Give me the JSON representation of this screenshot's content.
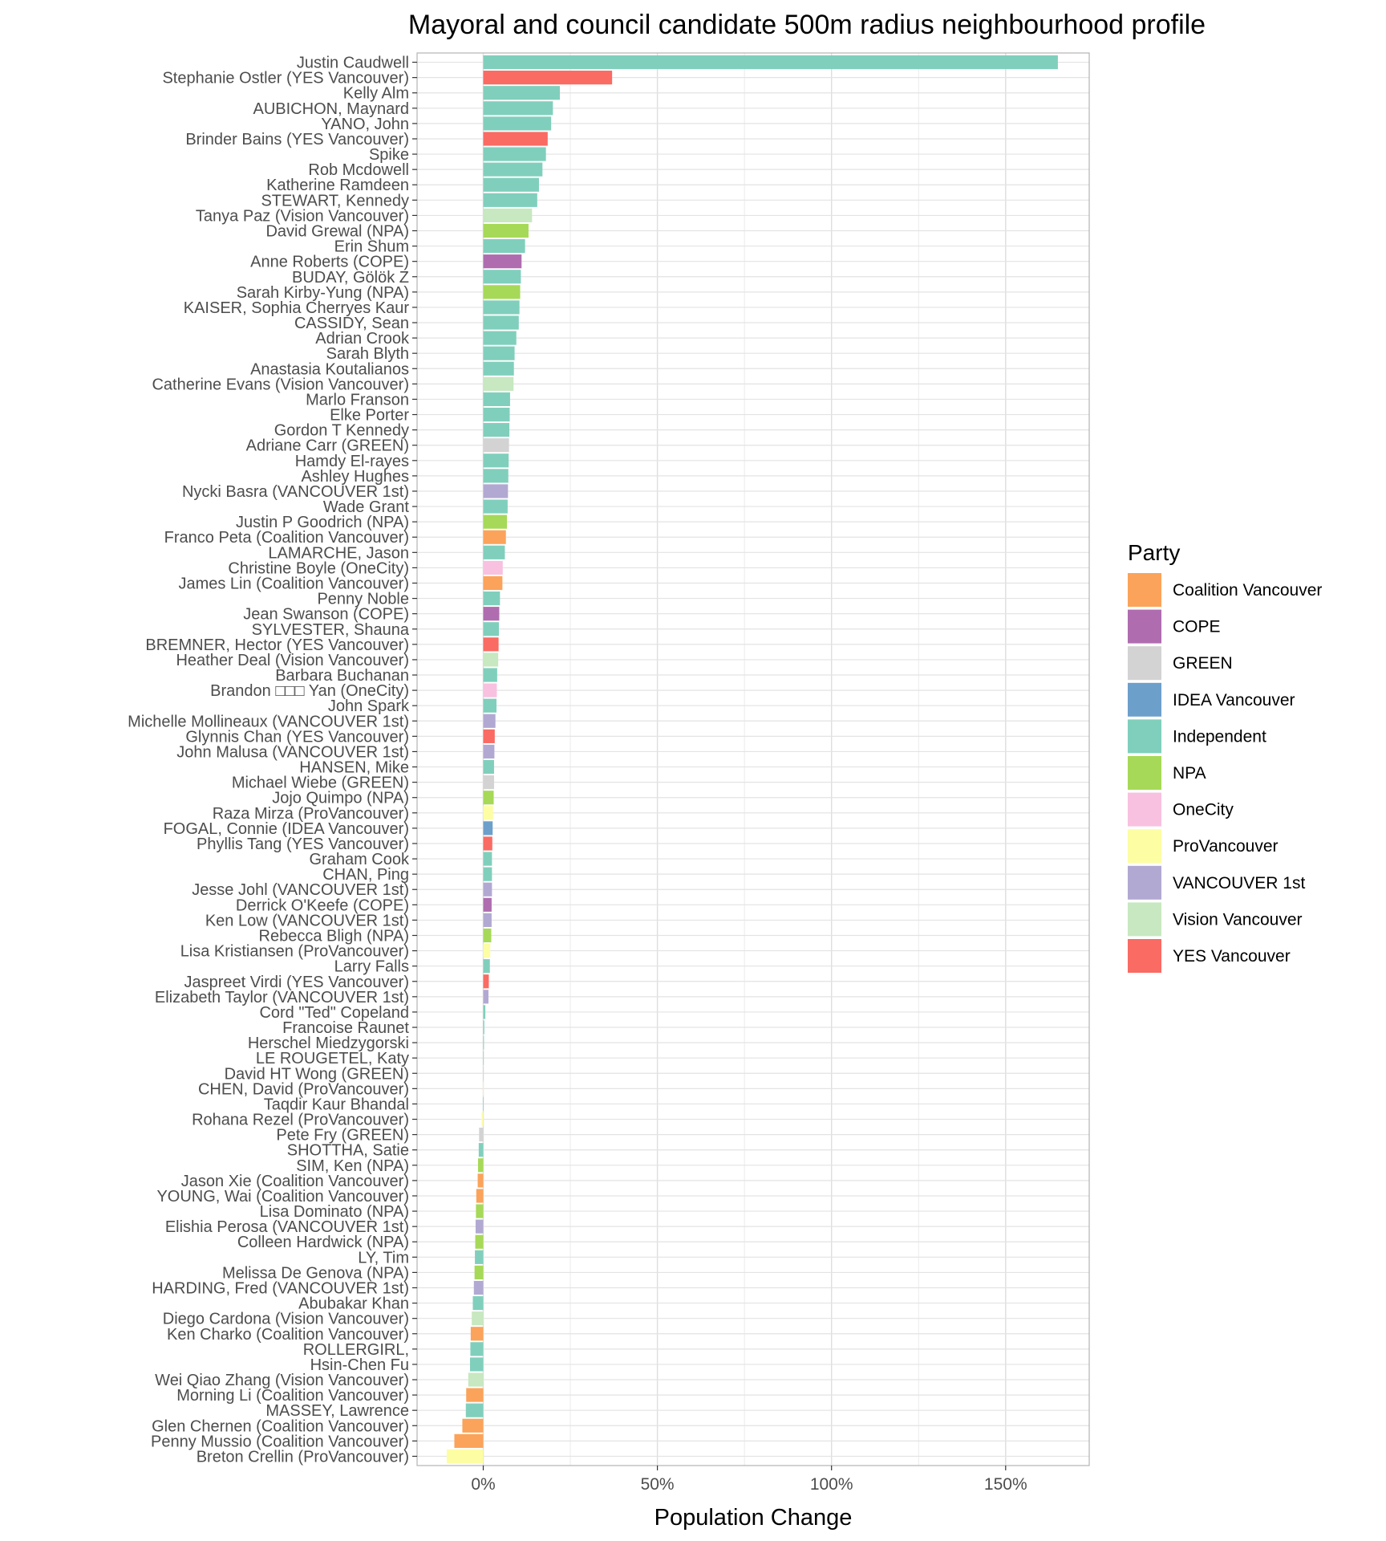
{
  "chart_data": {
    "type": "bar",
    "orientation": "horizontal",
    "title": "Mayoral and council candidate 500m radius neighbourhood profile",
    "xlabel": "Population Change",
    "ylabel": "",
    "xlim": [
      -0.19,
      1.74
    ],
    "x_ticks": [
      0,
      0.5,
      1.0,
      1.5
    ],
    "x_tick_labels": [
      "0%",
      "50%",
      "100%",
      "150%"
    ],
    "x_minor_ticks": [
      0.25,
      0.75,
      1.25
    ],
    "grid": true,
    "legend": {
      "title": "Party",
      "placement": "right",
      "entries": [
        {
          "name": "Coalition Vancouver",
          "color": "#FBA35A"
        },
        {
          "name": "COPE",
          "color": "#AF6DB0"
        },
        {
          "name": "GREEN",
          "color": "#D3D3D3"
        },
        {
          "name": "IDEA Vancouver",
          "color": "#6D9FCB"
        },
        {
          "name": "Independent",
          "color": "#80CFBC"
        },
        {
          "name": "NPA",
          "color": "#A6D957"
        },
        {
          "name": "OneCity",
          "color": "#F8C1DF"
        },
        {
          "name": "ProVancouver",
          "color": "#FDFDA4"
        },
        {
          "name": "VANCOUVER 1st",
          "color": "#B2A9D2"
        },
        {
          "name": "Vision Vancouver",
          "color": "#C7E8C0"
        },
        {
          "name": "YES Vancouver",
          "color": "#F96B63"
        }
      ]
    },
    "bars": [
      {
        "label": "Justin Caudwell",
        "party": "Independent",
        "value": 1.65
      },
      {
        "label": "Stephanie Ostler (YES Vancouver)",
        "party": "YES Vancouver",
        "value": 0.37
      },
      {
        "label": "Kelly Alm",
        "party": "Independent",
        "value": 0.22
      },
      {
        "label": "AUBICHON, Maynard",
        "party": "Independent",
        "value": 0.2
      },
      {
        "label": "YANO, John",
        "party": "Independent",
        "value": 0.195
      },
      {
        "label": "Brinder Bains (YES Vancouver)",
        "party": "YES Vancouver",
        "value": 0.185
      },
      {
        "label": "Spike",
        "party": "Independent",
        "value": 0.18
      },
      {
        "label": "Rob Mcdowell",
        "party": "Independent",
        "value": 0.17
      },
      {
        "label": "Katherine Ramdeen",
        "party": "Independent",
        "value": 0.16
      },
      {
        "label": "STEWART, Kennedy",
        "party": "Independent",
        "value": 0.155
      },
      {
        "label": "Tanya Paz (Vision Vancouver)",
        "party": "Vision Vancouver",
        "value": 0.14
      },
      {
        "label": "David Grewal (NPA)",
        "party": "NPA",
        "value": 0.13
      },
      {
        "label": "Erin Shum",
        "party": "Independent",
        "value": 0.12
      },
      {
        "label": "Anne Roberts (COPE)",
        "party": "COPE",
        "value": 0.11
      },
      {
        "label": "BUDAY, Gölök Z",
        "party": "Independent",
        "value": 0.108
      },
      {
        "label": "Sarah Kirby-Yung (NPA)",
        "party": "NPA",
        "value": 0.106
      },
      {
        "label": "KAISER, Sophia Cherryes Kaur",
        "party": "Independent",
        "value": 0.104
      },
      {
        "label": "CASSIDY, Sean",
        "party": "Independent",
        "value": 0.102
      },
      {
        "label": "Adrian Crook",
        "party": "Independent",
        "value": 0.095
      },
      {
        "label": "Sarah Blyth",
        "party": "Independent",
        "value": 0.09
      },
      {
        "label": "Anastasia Koutalianos",
        "party": "Independent",
        "value": 0.088
      },
      {
        "label": "Catherine Evans (Vision Vancouver)",
        "party": "Vision Vancouver",
        "value": 0.087
      },
      {
        "label": "Marlo Franson",
        "party": "Independent",
        "value": 0.077
      },
      {
        "label": "Elke Porter",
        "party": "Independent",
        "value": 0.076
      },
      {
        "label": "Gordon T Kennedy",
        "party": "Independent",
        "value": 0.075
      },
      {
        "label": "Adriane Carr (GREEN)",
        "party": "GREEN",
        "value": 0.074
      },
      {
        "label": "Hamdy El-rayes",
        "party": "Independent",
        "value": 0.073
      },
      {
        "label": "Ashley Hughes",
        "party": "Independent",
        "value": 0.072
      },
      {
        "label": "Nycki Basra (VANCOUVER 1st)",
        "party": "VANCOUVER 1st",
        "value": 0.071
      },
      {
        "label": "Wade Grant",
        "party": "Independent",
        "value": 0.07
      },
      {
        "label": "Justin P Goodrich (NPA)",
        "party": "NPA",
        "value": 0.068
      },
      {
        "label": "Franco Peta (Coalition Vancouver)",
        "party": "Coalition Vancouver",
        "value": 0.065
      },
      {
        "label": "LAMARCHE, Jason",
        "party": "Independent",
        "value": 0.062
      },
      {
        "label": "Christine Boyle (OneCity)",
        "party": "OneCity",
        "value": 0.056
      },
      {
        "label": "James Lin (Coalition Vancouver)",
        "party": "Coalition Vancouver",
        "value": 0.055
      },
      {
        "label": "Penny Noble",
        "party": "Independent",
        "value": 0.048
      },
      {
        "label": "Jean Swanson (COPE)",
        "party": "COPE",
        "value": 0.046
      },
      {
        "label": "SYLVESTER, Shauna",
        "party": "Independent",
        "value": 0.045
      },
      {
        "label": "BREMNER, Hector (YES Vancouver)",
        "party": "YES Vancouver",
        "value": 0.044
      },
      {
        "label": "Heather Deal (Vision Vancouver)",
        "party": "Vision Vancouver",
        "value": 0.043
      },
      {
        "label": "Barbara Buchanan",
        "party": "Independent",
        "value": 0.04
      },
      {
        "label": "Brandon □□□ Yan (OneCity)",
        "party": "OneCity",
        "value": 0.039
      },
      {
        "label": "John Spark",
        "party": "Independent",
        "value": 0.038
      },
      {
        "label": "Michelle Mollineaux (VANCOUVER 1st)",
        "party": "VANCOUVER 1st",
        "value": 0.035
      },
      {
        "label": "Glynnis Chan (YES Vancouver)",
        "party": "YES Vancouver",
        "value": 0.033
      },
      {
        "label": "John Malusa (VANCOUVER 1st)",
        "party": "VANCOUVER 1st",
        "value": 0.032
      },
      {
        "label": "HANSEN, Mike",
        "party": "Independent",
        "value": 0.031
      },
      {
        "label": "Michael Wiebe (GREEN)",
        "party": "GREEN",
        "value": 0.031
      },
      {
        "label": "Jojo Quimpo (NPA)",
        "party": "NPA",
        "value": 0.03
      },
      {
        "label": "Raza Mirza (ProVancouver)",
        "party": "ProVancouver",
        "value": 0.028
      },
      {
        "label": "FOGAL, Connie (IDEA Vancouver)",
        "party": "IDEA Vancouver",
        "value": 0.027
      },
      {
        "label": "Phyllis Tang (YES Vancouver)",
        "party": "YES Vancouver",
        "value": 0.026
      },
      {
        "label": "Graham Cook",
        "party": "Independent",
        "value": 0.025
      },
      {
        "label": "CHAN, Ping",
        "party": "Independent",
        "value": 0.025
      },
      {
        "label": "Jesse Johl (VANCOUVER 1st)",
        "party": "VANCOUVER 1st",
        "value": 0.025
      },
      {
        "label": "Derrick O'Keefe (COPE)",
        "party": "COPE",
        "value": 0.024
      },
      {
        "label": "Ken Low (VANCOUVER 1st)",
        "party": "VANCOUVER 1st",
        "value": 0.024
      },
      {
        "label": "Rebecca Bligh (NPA)",
        "party": "NPA",
        "value": 0.023
      },
      {
        "label": "Lisa Kristiansen (ProVancouver)",
        "party": "ProVancouver",
        "value": 0.02
      },
      {
        "label": "Larry Falls",
        "party": "Independent",
        "value": 0.019
      },
      {
        "label": "Jaspreet Virdi (YES Vancouver)",
        "party": "YES Vancouver",
        "value": 0.016
      },
      {
        "label": "Elizabeth Taylor (VANCOUVER 1st)",
        "party": "VANCOUVER 1st",
        "value": 0.015
      },
      {
        "label": "Cord \"Ted\" Copeland",
        "party": "Independent",
        "value": 0.006
      },
      {
        "label": "Francoise Raunet",
        "party": "Independent",
        "value": 0.003
      },
      {
        "label": "Herschel Miedzygorski",
        "party": "Independent",
        "value": 0.002
      },
      {
        "label": "LE ROUGETEL, Katy",
        "party": "Independent",
        "value": 0.001
      },
      {
        "label": "David HT Wong (GREEN)",
        "party": "GREEN",
        "value": 0.0
      },
      {
        "label": "CHEN, David (ProVancouver)",
        "party": "ProVancouver",
        "value": 0.0
      },
      {
        "label": "Taqdir Kaur Bhandal",
        "party": "Independent",
        "value": -0.001
      },
      {
        "label": "Rohana Rezel (ProVancouver)",
        "party": "ProVancouver",
        "value": -0.005
      },
      {
        "label": "Pete Fry (GREEN)",
        "party": "GREEN",
        "value": -0.012
      },
      {
        "label": "SHOTTHA, Satie",
        "party": "Independent",
        "value": -0.013
      },
      {
        "label": "SIM, Ken (NPA)",
        "party": "NPA",
        "value": -0.015
      },
      {
        "label": "Jason Xie (Coalition Vancouver)",
        "party": "Coalition Vancouver",
        "value": -0.016
      },
      {
        "label": "YOUNG, Wai (Coalition Vancouver)",
        "party": "Coalition Vancouver",
        "value": -0.02
      },
      {
        "label": "Lisa Dominato (NPA)",
        "party": "NPA",
        "value": -0.021
      },
      {
        "label": "Elishia Perosa (VANCOUVER 1st)",
        "party": "VANCOUVER 1st",
        "value": -0.022
      },
      {
        "label": "Colleen Hardwick (NPA)",
        "party": "NPA",
        "value": -0.023
      },
      {
        "label": "LY, Tim",
        "party": "Independent",
        "value": -0.024
      },
      {
        "label": "Melissa De Genova (NPA)",
        "party": "NPA",
        "value": -0.025
      },
      {
        "label": "HARDING, Fred (VANCOUVER 1st)",
        "party": "VANCOUVER 1st",
        "value": -0.027
      },
      {
        "label": "Abubakar Khan",
        "party": "Independent",
        "value": -0.03
      },
      {
        "label": "Diego Cardona (Vision Vancouver)",
        "party": "Vision Vancouver",
        "value": -0.033
      },
      {
        "label": "Ken Charko (Coalition Vancouver)",
        "party": "Coalition Vancouver",
        "value": -0.036
      },
      {
        "label": "ROLLERGIRL,",
        "party": "Independent",
        "value": -0.037
      },
      {
        "label": "Hsin-Chen Fu",
        "party": "Independent",
        "value": -0.038
      },
      {
        "label": "Wei Qiao Zhang (Vision Vancouver)",
        "party": "Vision Vancouver",
        "value": -0.043
      },
      {
        "label": "Morning Li (Coalition Vancouver)",
        "party": "Coalition Vancouver",
        "value": -0.049
      },
      {
        "label": "MASSEY, Lawrence",
        "party": "Independent",
        "value": -0.05
      },
      {
        "label": "Glen Chernen (Coalition Vancouver)",
        "party": "Coalition Vancouver",
        "value": -0.06
      },
      {
        "label": "Penny Mussio (Coalition Vancouver)",
        "party": "Coalition Vancouver",
        "value": -0.083
      },
      {
        "label": "Breton Crellin (ProVancouver)",
        "party": "ProVancouver",
        "value": -0.105
      }
    ]
  }
}
